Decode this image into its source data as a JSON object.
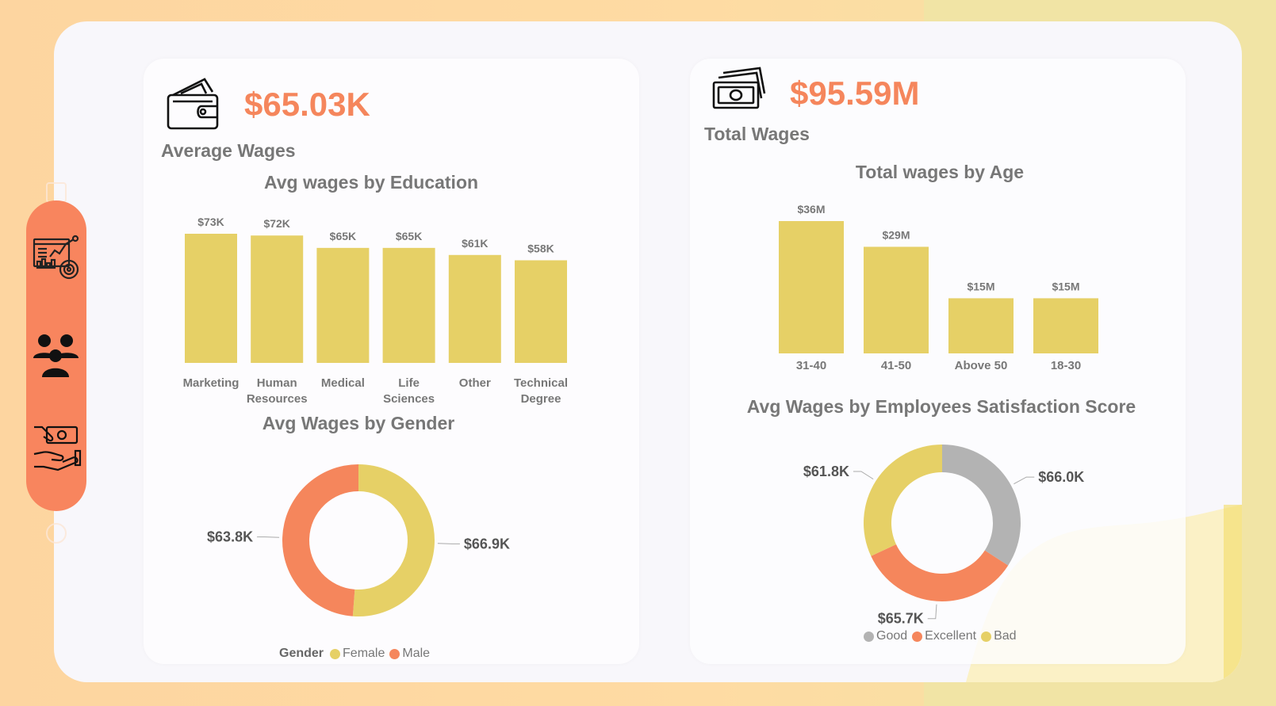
{
  "colors": {
    "accent": "#f5865c",
    "bar": "#e6d066",
    "female": "#e6d066",
    "male": "#f5865c",
    "good": "#b3b3b3",
    "excellent": "#f5865c",
    "bad": "#e6d066"
  },
  "sidebar": {
    "items": [
      {
        "name": "dashboard",
        "icon": "analytics-dashboard-icon"
      },
      {
        "name": "employees",
        "icon": "people-group-icon"
      },
      {
        "name": "wages",
        "icon": "hand-money-icon"
      }
    ]
  },
  "kpi_left": {
    "value": "$65.03K",
    "label": "Average Wages",
    "icon": "wallet-icon"
  },
  "kpi_right": {
    "value": "$95.59M",
    "label": "Total Wages",
    "icon": "money-stack-icon"
  },
  "chart_data": [
    {
      "id": "education",
      "type": "bar",
      "title": "Avg wages by Education",
      "categories": [
        [
          "Marketing"
        ],
        [
          "Human",
          "Resources"
        ],
        [
          "Medical"
        ],
        [
          "Life",
          "Sciences"
        ],
        [
          "Other"
        ],
        [
          "Technical",
          "Degree"
        ]
      ],
      "values": [
        73,
        72,
        65,
        65,
        61,
        58
      ],
      "labels": [
        "$73K",
        "$72K",
        "$65K",
        "$65K",
        "$61K",
        "$58K"
      ],
      "unit": "K",
      "ylim": [
        0,
        73
      ]
    },
    {
      "id": "age",
      "type": "bar",
      "title": "Total wages by Age",
      "categories": [
        [
          "31-40"
        ],
        [
          "41-50"
        ],
        [
          "Above 50"
        ],
        [
          "18-30"
        ]
      ],
      "values": [
        36,
        29,
        15,
        15
      ],
      "labels": [
        "$36M",
        "$29M",
        "$15M",
        "$15M"
      ],
      "unit": "M",
      "ylim": [
        0,
        36
      ]
    },
    {
      "id": "gender",
      "type": "pie",
      "title": "Avg Wages by Gender",
      "legend_title": "Gender",
      "slices": [
        {
          "name": "Female",
          "value": 66.9,
          "label": "$66.9K",
          "color": "#e6d066"
        },
        {
          "name": "Male",
          "value": 63.8,
          "label": "$63.8K",
          "color": "#f5865c"
        }
      ]
    },
    {
      "id": "satisfaction",
      "type": "pie",
      "title": "Avg Wages by Employees Satisfaction Score",
      "slices": [
        {
          "name": "Good",
          "value": 66.0,
          "label": "$66.0K",
          "color": "#b3b3b3"
        },
        {
          "name": "Excellent",
          "value": 65.7,
          "label": "$65.7K",
          "color": "#f5865c"
        },
        {
          "name": "Bad",
          "value": 61.8,
          "label": "$61.8K",
          "color": "#e6d066"
        }
      ]
    }
  ]
}
